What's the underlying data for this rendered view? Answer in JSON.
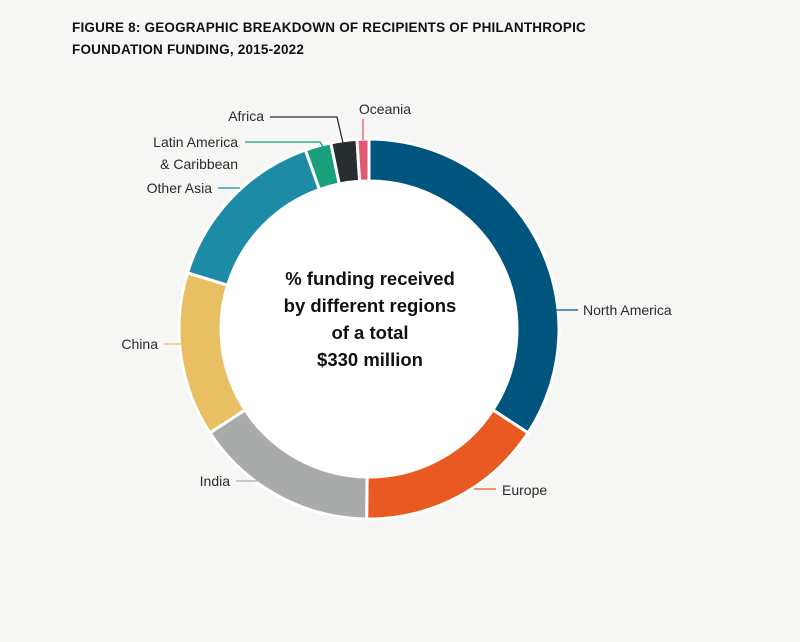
{
  "chart_data": {
    "type": "pie",
    "title": "FIGURE 8: GEOGRAPHIC BREAKDOWN OF RECIPIENTS OF PHILANTHROPIC FOUNDATION FUNDING, 2015-2022",
    "center_label": [
      "% funding received",
      "by different regions",
      "of a total",
      "$330 million"
    ],
    "categories": [
      "North America",
      "Europe",
      "India",
      "China",
      "Other Asia",
      "Latin America & Caribbean",
      "Africa",
      "Oceania"
    ],
    "values": [
      34.0,
      15.9,
      15.5,
      13.9,
      14.7,
      2.2,
      2.2,
      1.0
    ],
    "colors": [
      "#00557e",
      "#e85a21",
      "#a9abaa",
      "#e8c063",
      "#1d8aa6",
      "#1a9f7d",
      "#282e2f",
      "#e25a70"
    ]
  }
}
